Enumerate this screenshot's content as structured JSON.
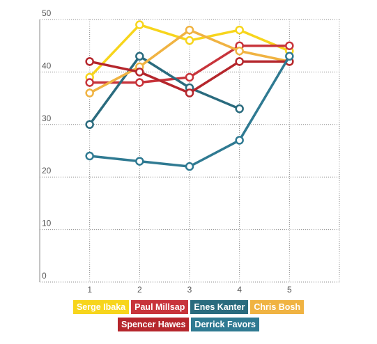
{
  "chart_data": {
    "type": "line",
    "x": [
      1,
      2,
      3,
      4,
      5
    ],
    "xlim": [
      0,
      6
    ],
    "ylim": [
      0,
      50
    ],
    "y_ticks": [
      0,
      10,
      20,
      30,
      40,
      50
    ],
    "x_ticks": [
      1,
      2,
      3,
      4,
      5
    ],
    "grid": true,
    "legend_position": "bottom",
    "series": [
      {
        "name": "Serge Ibaka",
        "color": "#f7d51c",
        "values": [
          39,
          49,
          46,
          48,
          44
        ]
      },
      {
        "name": "Paul Millsap",
        "color": "#c8343b",
        "values": [
          38,
          38,
          39,
          45,
          45
        ]
      },
      {
        "name": "Enes Kanter",
        "color": "#2a6b7e",
        "values": [
          30,
          43,
          37,
          33,
          null
        ]
      },
      {
        "name": "Chris Bosh",
        "color": "#f0b342",
        "values": [
          36,
          41,
          48,
          44,
          42
        ]
      },
      {
        "name": "Spencer Hawes",
        "color": "#b5262c",
        "values": [
          42,
          40,
          36,
          42,
          42
        ]
      },
      {
        "name": "Derrick Favors",
        "color": "#2f7a92",
        "values": [
          24,
          23,
          22,
          27,
          43
        ]
      }
    ]
  }
}
